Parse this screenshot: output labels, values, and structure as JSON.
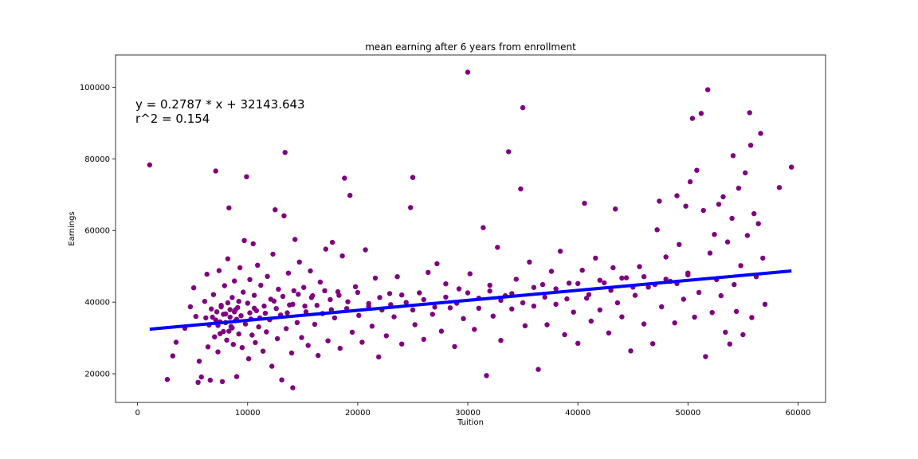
{
  "chart_data": {
    "type": "scatter",
    "title": "mean earning after 6 years from enrollment",
    "xlabel": "Tuition",
    "ylabel": "Earnings",
    "xlim": [
      -2000,
      62500
    ],
    "ylim": [
      12000,
      109000
    ],
    "xticks": [
      0,
      10000,
      20000,
      30000,
      40000,
      50000,
      60000
    ],
    "xtick_labels": [
      "0",
      "10000",
      "20000",
      "30000",
      "40000",
      "50000",
      "60000"
    ],
    "yticks": [
      20000,
      40000,
      60000,
      80000,
      100000
    ],
    "ytick_labels": [
      "20000",
      "40000",
      "60000",
      "80000",
      "100000"
    ],
    "grid": false,
    "point_color": "#800080",
    "line_color": "#0000ff",
    "annotation_lines": [
      "y = 0.2787 * x + 32143.643",
      "r^2 = 0.154"
    ],
    "regression": {
      "slope": 0.2787,
      "intercept": 32143.643,
      "x_range": [
        1100,
        59400
      ]
    },
    "series": [
      {
        "points": [
          [
            1100,
            78300
          ],
          [
            2700,
            18400
          ],
          [
            3200,
            25000
          ],
          [
            3500,
            28800
          ],
          [
            4300,
            32700
          ],
          [
            4800,
            38700
          ],
          [
            5100,
            44000
          ],
          [
            5300,
            36000
          ],
          [
            5500,
            17600
          ],
          [
            5600,
            23500
          ],
          [
            5800,
            19100
          ],
          [
            6100,
            40200
          ],
          [
            6300,
            47800
          ],
          [
            6400,
            27500
          ],
          [
            6500,
            33600
          ],
          [
            6600,
            18200
          ],
          [
            6800,
            35800
          ],
          [
            6900,
            42100
          ],
          [
            7000,
            30300
          ],
          [
            7100,
            76600
          ],
          [
            7200,
            37300
          ],
          [
            7300,
            26100
          ],
          [
            7400,
            48800
          ],
          [
            7500,
            34500
          ],
          [
            7600,
            39100
          ],
          [
            7700,
            17800
          ],
          [
            7800,
            31800
          ],
          [
            7900,
            44600
          ],
          [
            8000,
            36700
          ],
          [
            8100,
            29400
          ],
          [
            8200,
            52100
          ],
          [
            8300,
            66300
          ],
          [
            8400,
            37900
          ],
          [
            8500,
            33200
          ],
          [
            8600,
            41300
          ],
          [
            8700,
            28200
          ],
          [
            8800,
            45900
          ],
          [
            8900,
            34800
          ],
          [
            9000,
            19200
          ],
          [
            9100,
            38500
          ],
          [
            9200,
            31100
          ],
          [
            9300,
            49600
          ],
          [
            9400,
            36200
          ],
          [
            9500,
            27300
          ],
          [
            9600,
            42800
          ],
          [
            9700,
            57200
          ],
          [
            9800,
            33900
          ],
          [
            9900,
            75000
          ],
          [
            10000,
            39700
          ],
          [
            10100,
            24200
          ],
          [
            10200,
            46300
          ],
          [
            10300,
            35300
          ],
          [
            10400,
            30800
          ],
          [
            10500,
            56300
          ],
          [
            10600,
            41900
          ],
          [
            10700,
            28700
          ],
          [
            10800,
            37600
          ],
          [
            10900,
            50300
          ],
          [
            11000,
            33100
          ],
          [
            11200,
            44700
          ],
          [
            11400,
            26300
          ],
          [
            11500,
            38900
          ],
          [
            11700,
            31700
          ],
          [
            11800,
            47200
          ],
          [
            12000,
            35100
          ],
          [
            12200,
            22100
          ],
          [
            12300,
            53400
          ],
          [
            12400,
            40300
          ],
          [
            12500,
            65800
          ],
          [
            12700,
            29800
          ],
          [
            12800,
            43600
          ],
          [
            13000,
            36400
          ],
          [
            13100,
            18300
          ],
          [
            13300,
            64100
          ],
          [
            13400,
            81800
          ],
          [
            13500,
            32600
          ],
          [
            13700,
            48100
          ],
          [
            13800,
            39200
          ],
          [
            14000,
            25800
          ],
          [
            14100,
            16100
          ],
          [
            14200,
            43200
          ],
          [
            14300,
            57500
          ],
          [
            14500,
            34300
          ],
          [
            14700,
            51200
          ],
          [
            14900,
            30100
          ],
          [
            15100,
            44100
          ],
          [
            15300,
            37300
          ],
          [
            15500,
            27900
          ],
          [
            15700,
            48700
          ],
          [
            15900,
            41800
          ],
          [
            16100,
            33800
          ],
          [
            16400,
            25100
          ],
          [
            16600,
            45600
          ],
          [
            16800,
            36800
          ],
          [
            17100,
            54800
          ],
          [
            17300,
            29200
          ],
          [
            17500,
            40700
          ],
          [
            17700,
            56700
          ],
          [
            17900,
            35600
          ],
          [
            18200,
            42900
          ],
          [
            18400,
            27100
          ],
          [
            18600,
            52900
          ],
          [
            18800,
            74600
          ],
          [
            19000,
            38200
          ],
          [
            19300,
            69800
          ],
          [
            19500,
            31600
          ],
          [
            19800,
            44300
          ],
          [
            20100,
            36300
          ],
          [
            20400,
            28800
          ],
          [
            20700,
            54600
          ],
          [
            21000,
            39600
          ],
          [
            21300,
            33300
          ],
          [
            21600,
            46700
          ],
          [
            21900,
            24700
          ],
          [
            22200,
            37800
          ],
          [
            22600,
            30600
          ],
          [
            22900,
            42400
          ],
          [
            23300,
            35900
          ],
          [
            23600,
            47100
          ],
          [
            24000,
            28300
          ],
          [
            24400,
            39900
          ],
          [
            24800,
            66400
          ],
          [
            25000,
            74800
          ],
          [
            25200,
            33700
          ],
          [
            25600,
            42600
          ],
          [
            26000,
            29600
          ],
          [
            26400,
            48300
          ],
          [
            26800,
            36600
          ],
          [
            27200,
            50700
          ],
          [
            27600,
            31900
          ],
          [
            28000,
            45100
          ],
          [
            28400,
            38400
          ],
          [
            28800,
            27600
          ],
          [
            29200,
            43700
          ],
          [
            29600,
            35400
          ],
          [
            30000,
            104200
          ],
          [
            30200,
            47900
          ],
          [
            30600,
            32400
          ],
          [
            31000,
            41100
          ],
          [
            31400,
            60800
          ],
          [
            31700,
            19500
          ],
          [
            32000,
            44700
          ],
          [
            32300,
            36100
          ],
          [
            32700,
            55300
          ],
          [
            33000,
            29300
          ],
          [
            33400,
            41800
          ],
          [
            33700,
            82000
          ],
          [
            34000,
            38100
          ],
          [
            34400,
            46400
          ],
          [
            34800,
            71600
          ],
          [
            35000,
            94300
          ],
          [
            35200,
            33400
          ],
          [
            35600,
            51200
          ],
          [
            36000,
            38900
          ],
          [
            36400,
            21200
          ],
          [
            36800,
            44900
          ],
          [
            37200,
            33700
          ],
          [
            37600,
            48600
          ],
          [
            38000,
            39400
          ],
          [
            38400,
            54200
          ],
          [
            38800,
            30900
          ],
          [
            39200,
            45300
          ],
          [
            39600,
            37200
          ],
          [
            40000,
            28500
          ],
          [
            40400,
            48900
          ],
          [
            40600,
            67600
          ],
          [
            40800,
            41100
          ],
          [
            41200,
            34700
          ],
          [
            41600,
            52300
          ],
          [
            42000,
            37800
          ],
          [
            42400,
            45400
          ],
          [
            42800,
            31400
          ],
          [
            43200,
            49600
          ],
          [
            43400,
            66000
          ],
          [
            43600,
            39800
          ],
          [
            44000,
            35900
          ],
          [
            44400,
            46800
          ],
          [
            44800,
            26400
          ],
          [
            45200,
            41900
          ],
          [
            45600,
            49900
          ],
          [
            46000,
            33900
          ],
          [
            46400,
            44200
          ],
          [
            46800,
            28400
          ],
          [
            47200,
            60200
          ],
          [
            47400,
            68200
          ],
          [
            47600,
            38700
          ],
          [
            48000,
            52600
          ],
          [
            48400,
            45800
          ],
          [
            48800,
            34200
          ],
          [
            49000,
            69700
          ],
          [
            49200,
            56100
          ],
          [
            49600,
            40800
          ],
          [
            49800,
            66800
          ],
          [
            50000,
            47600
          ],
          [
            50200,
            73600
          ],
          [
            50400,
            91300
          ],
          [
            50600,
            35800
          ],
          [
            50800,
            76800
          ],
          [
            51000,
            42700
          ],
          [
            51200,
            92700
          ],
          [
            51400,
            65600
          ],
          [
            51600,
            24800
          ],
          [
            51800,
            99300
          ],
          [
            52000,
            53700
          ],
          [
            52200,
            37100
          ],
          [
            52400,
            58900
          ],
          [
            52600,
            46300
          ],
          [
            52800,
            67300
          ],
          [
            53000,
            41800
          ],
          [
            53200,
            69400
          ],
          [
            53400,
            31600
          ],
          [
            53600,
            56800
          ],
          [
            53800,
            28300
          ],
          [
            54000,
            63400
          ],
          [
            54100,
            80900
          ],
          [
            54200,
            44900
          ],
          [
            54400,
            37400
          ],
          [
            54600,
            71800
          ],
          [
            54800,
            50200
          ],
          [
            55000,
            30900
          ],
          [
            55200,
            76100
          ],
          [
            55400,
            58600
          ],
          [
            55600,
            92900
          ],
          [
            55700,
            83800
          ],
          [
            55800,
            35700
          ],
          [
            56000,
            64700
          ],
          [
            56200,
            47100
          ],
          [
            56400,
            61900
          ],
          [
            56600,
            87100
          ],
          [
            56800,
            52300
          ],
          [
            57000,
            39400
          ],
          [
            58300,
            72000
          ],
          [
            59400,
            77700
          ],
          [
            6200,
            35600
          ],
          [
            6700,
            38100
          ],
          [
            7100,
            35000
          ],
          [
            7300,
            33500
          ],
          [
            7600,
            38700
          ],
          [
            7800,
            36600
          ],
          [
            8000,
            34300
          ],
          [
            8200,
            39800
          ],
          [
            8400,
            35800
          ],
          [
            8600,
            32800
          ],
          [
            8800,
            37300
          ],
          [
            9000,
            35200
          ],
          [
            9200,
            40200
          ],
          [
            7500,
            31200
          ],
          [
            8300,
            31900
          ],
          [
            8900,
            37900
          ],
          [
            10200,
            37000
          ],
          [
            10600,
            38300
          ],
          [
            11100,
            35600
          ],
          [
            11600,
            36900
          ],
          [
            12100,
            40800
          ],
          [
            12600,
            38200
          ],
          [
            13200,
            41600
          ],
          [
            13600,
            37000
          ],
          [
            14100,
            39400
          ],
          [
            14600,
            42200
          ],
          [
            15200,
            38900
          ],
          [
            15800,
            41300
          ],
          [
            16300,
            39100
          ],
          [
            17000,
            43200
          ],
          [
            17600,
            37900
          ],
          [
            18300,
            41900
          ],
          [
            19100,
            40100
          ],
          [
            20000,
            42700
          ],
          [
            21000,
            38800
          ],
          [
            22000,
            41300
          ],
          [
            23000,
            39300
          ],
          [
            24000,
            42000
          ],
          [
            25000,
            37800
          ],
          [
            26000,
            40700
          ],
          [
            27000,
            38600
          ],
          [
            28000,
            41400
          ],
          [
            29000,
            39700
          ],
          [
            30000,
            42600
          ],
          [
            31000,
            38300
          ],
          [
            32000,
            43100
          ],
          [
            33000,
            40500
          ],
          [
            34000,
            42400
          ],
          [
            35000,
            39800
          ],
          [
            36000,
            44100
          ],
          [
            37000,
            41400
          ],
          [
            38000,
            43700
          ],
          [
            39000,
            40900
          ],
          [
            40000,
            45200
          ],
          [
            41000,
            42100
          ],
          [
            42000,
            46100
          ],
          [
            43000,
            43300
          ],
          [
            44000,
            46700
          ],
          [
            45000,
            44200
          ],
          [
            46000,
            47100
          ],
          [
            47000,
            44900
          ],
          [
            48000,
            46400
          ],
          [
            49000,
            45200
          ],
          [
            50000,
            48100
          ]
        ]
      }
    ]
  }
}
